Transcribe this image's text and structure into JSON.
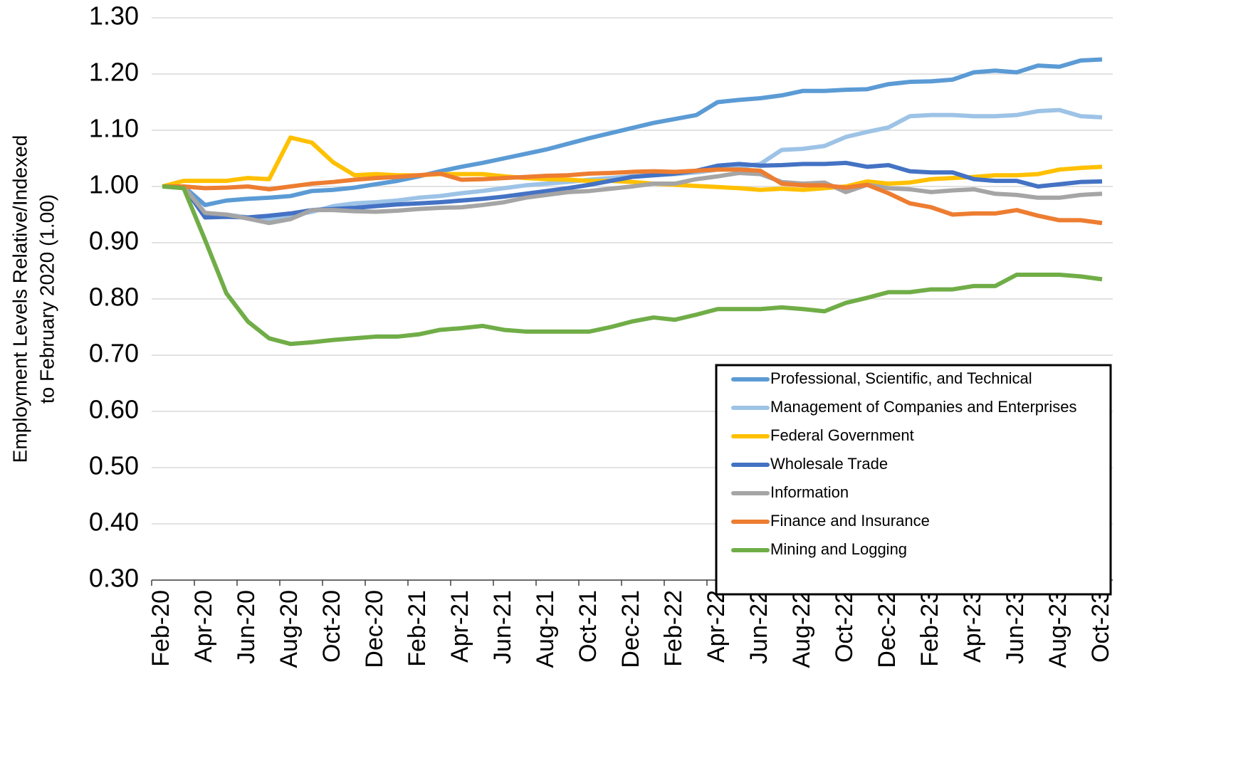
{
  "chart_data": {
    "type": "line",
    "ylabel": [
      "Employment Levels Relative/Indexed",
      "to February 2020 (1.00)"
    ],
    "categories": [
      "Feb-20",
      null,
      "Apr-20",
      null,
      "Jun-20",
      null,
      "Aug-20",
      null,
      "Oct-20",
      null,
      "Dec-20",
      null,
      "Feb-21",
      null,
      "Apr-21",
      null,
      "Jun-21",
      null,
      "Aug-21",
      null,
      "Oct-21",
      null,
      "Dec-21",
      null,
      "Feb-22",
      null,
      "Apr-22",
      null,
      "Jun-22",
      null,
      "Aug-22",
      null,
      "Oct-22",
      null,
      "Dec-22",
      null,
      "Feb-23",
      null,
      "Apr-23",
      null,
      "Jun-23",
      null,
      "Aug-23",
      null,
      "Oct-23"
    ],
    "series": [
      {
        "name": "Professional, Scientific, and Technical",
        "color": "#5b9bd5",
        "values": [
          1.0,
          1.0,
          0.967,
          0.975,
          0.978,
          0.98,
          0.983,
          0.992,
          0.994,
          0.998,
          1.004,
          1.01,
          1.018,
          1.027,
          1.035,
          1.042,
          1.05,
          1.058,
          1.066,
          1.076,
          1.086,
          1.095,
          1.104,
          1.113,
          1.12,
          1.127,
          1.15,
          1.154,
          1.157,
          1.162,
          1.17,
          1.17,
          1.172,
          1.173,
          1.182,
          1.186,
          1.187,
          1.19,
          1.203,
          1.206,
          1.203,
          1.215,
          1.213,
          1.224,
          1.226
        ]
      },
      {
        "name": "Management of Companies and Enterprises",
        "color": "#9dc3e6",
        "values": [
          1.0,
          1.0,
          0.95,
          0.95,
          0.945,
          0.942,
          0.948,
          0.955,
          0.965,
          0.97,
          0.972,
          0.975,
          0.98,
          0.983,
          0.988,
          0.992,
          0.997,
          1.002,
          1.005,
          1.008,
          1.012,
          1.015,
          1.018,
          1.02,
          1.022,
          1.025,
          1.03,
          1.035,
          1.04,
          1.065,
          1.067,
          1.072,
          1.088,
          1.097,
          1.105,
          1.125,
          1.127,
          1.127,
          1.125,
          1.125,
          1.127,
          1.134,
          1.136,
          1.125,
          1.123
        ]
      },
      {
        "name": "Federal Government",
        "color": "#ffc000",
        "values": [
          1.0,
          1.01,
          1.01,
          1.01,
          1.015,
          1.013,
          1.087,
          1.078,
          1.043,
          1.02,
          1.022,
          1.02,
          1.02,
          1.022,
          1.022,
          1.022,
          1.018,
          1.015,
          1.013,
          1.012,
          1.01,
          1.01,
          1.008,
          1.005,
          1.003,
          1.001,
          0.999,
          0.997,
          0.994,
          0.996,
          0.994,
          0.997,
          1.0,
          1.009,
          1.005,
          1.007,
          1.013,
          1.015,
          1.017,
          1.02,
          1.02,
          1.022,
          1.03,
          1.033,
          1.035
        ]
      },
      {
        "name": "Wholesale Trade",
        "color": "#4472c4",
        "values": [
          1.0,
          1.0,
          0.945,
          0.946,
          0.945,
          0.948,
          0.952,
          0.958,
          0.96,
          0.962,
          0.965,
          0.968,
          0.97,
          0.972,
          0.975,
          0.978,
          0.982,
          0.987,
          0.992,
          0.997,
          1.003,
          1.01,
          1.017,
          1.02,
          1.023,
          1.028,
          1.037,
          1.04,
          1.037,
          1.038,
          1.04,
          1.04,
          1.042,
          1.035,
          1.038,
          1.027,
          1.025,
          1.025,
          1.013,
          1.01,
          1.01,
          1.0,
          1.004,
          1.008,
          1.009
        ]
      },
      {
        "name": "Information",
        "color": "#a5a5a5",
        "values": [
          1.0,
          1.0,
          0.953,
          0.95,
          0.943,
          0.935,
          0.942,
          0.958,
          0.958,
          0.956,
          0.955,
          0.957,
          0.96,
          0.962,
          0.963,
          0.967,
          0.972,
          0.98,
          0.985,
          0.99,
          0.992,
          0.996,
          1.0,
          1.005,
          1.005,
          1.013,
          1.018,
          1.024,
          1.022,
          1.008,
          1.005,
          1.007,
          0.99,
          1.003,
          0.997,
          0.995,
          0.99,
          0.993,
          0.995,
          0.987,
          0.985,
          0.98,
          0.98,
          0.985,
          0.987
        ]
      },
      {
        "name": "Finance and Insurance",
        "color": "#ed7d31",
        "values": [
          1.0,
          1.0,
          0.997,
          0.998,
          1.0,
          0.995,
          1.0,
          1.005,
          1.008,
          1.012,
          1.015,
          1.017,
          1.02,
          1.023,
          1.012,
          1.013,
          1.015,
          1.017,
          1.019,
          1.02,
          1.023,
          1.024,
          1.026,
          1.027,
          1.026,
          1.028,
          1.03,
          1.03,
          1.028,
          1.005,
          1.002,
          1.002,
          0.998,
          1.003,
          0.988,
          0.97,
          0.963,
          0.95,
          0.952,
          0.952,
          0.958,
          0.948,
          0.94,
          0.94,
          0.935
        ]
      },
      {
        "name": "Mining and Logging",
        "color": "#70ad47",
        "values": [
          1.0,
          0.997,
          0.905,
          0.81,
          0.76,
          0.73,
          0.72,
          0.723,
          0.727,
          0.73,
          0.733,
          0.733,
          0.737,
          0.745,
          0.748,
          0.752,
          0.745,
          0.742,
          0.742,
          0.742,
          0.742,
          0.75,
          0.76,
          0.767,
          0.763,
          0.772,
          0.782,
          0.782,
          0.782,
          0.785,
          0.782,
          0.778,
          0.793,
          0.802,
          0.812,
          0.812,
          0.817,
          0.817,
          0.823,
          0.823,
          0.843,
          0.843,
          0.843,
          0.84,
          0.835
        ]
      }
    ],
    "ylim": [
      0.3,
      1.3
    ],
    "yticks": [
      {
        "value": 0.3,
        "label": "0.30"
      },
      {
        "value": 0.4,
        "label": "0.40"
      },
      {
        "value": 0.5,
        "label": "0.50"
      },
      {
        "value": 0.6,
        "label": "0.60"
      },
      {
        "value": 0.7,
        "label": "0.70"
      },
      {
        "value": 0.8,
        "label": "0.80"
      },
      {
        "value": 0.9,
        "label": "0.90"
      },
      {
        "value": 1.0,
        "label": "1.00"
      },
      {
        "value": 1.1,
        "label": "1.10"
      },
      {
        "value": 1.2,
        "label": "1.20"
      },
      {
        "value": 1.3,
        "label": "1.30"
      }
    ],
    "grid": true,
    "legend": "lower right"
  }
}
